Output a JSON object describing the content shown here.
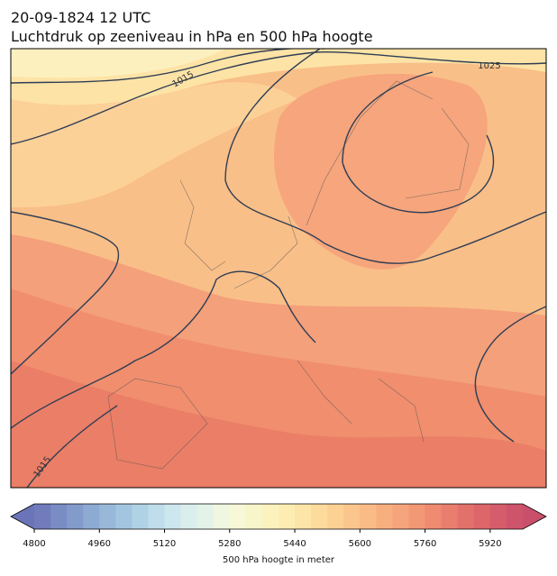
{
  "header": {
    "date": "20-09-1824 12 UTC",
    "title": "Luchtdruk op zeeniveau in hPa en 500 hPa hoogte"
  },
  "map": {
    "contour_labels": [
      "1015",
      "1025",
      "1015"
    ]
  },
  "colorbar": {
    "label": "500 hPa hoogte in meter",
    "lim": [
      4800,
      6000
    ],
    "ticks": [
      4800,
      4960,
      5120,
      5280,
      5440,
      5600,
      5760,
      5920
    ]
  }
}
